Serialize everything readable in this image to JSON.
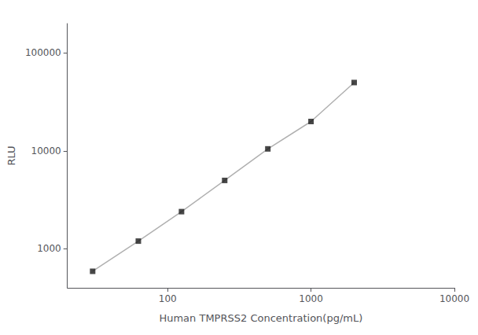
{
  "chart_data": {
    "type": "line",
    "x": [
      30,
      62.5,
      125,
      250,
      500,
      1000,
      2000
    ],
    "series": [
      {
        "type": "line",
        "color": "#b0b0b0",
        "values": [
          590,
          1200,
          2400,
          5000,
          10500,
          20000,
          50000
        ]
      },
      {
        "type": "scatter",
        "color": "#1a1a1a",
        "marker": "square",
        "values": [
          590,
          1200,
          2400,
          5000,
          10500,
          20000,
          50000
        ]
      }
    ],
    "xlabel": "Human TMPRSS2 Concentration(pg/mL)",
    "ylabel": "RLU",
    "log": true,
    "xlim": [
      20,
      10000
    ],
    "ylim": [
      400,
      200000
    ],
    "xticks": [
      100,
      1000,
      10000
    ],
    "yticks": [
      1000,
      10000,
      100000
    ],
    "grid": false
  }
}
